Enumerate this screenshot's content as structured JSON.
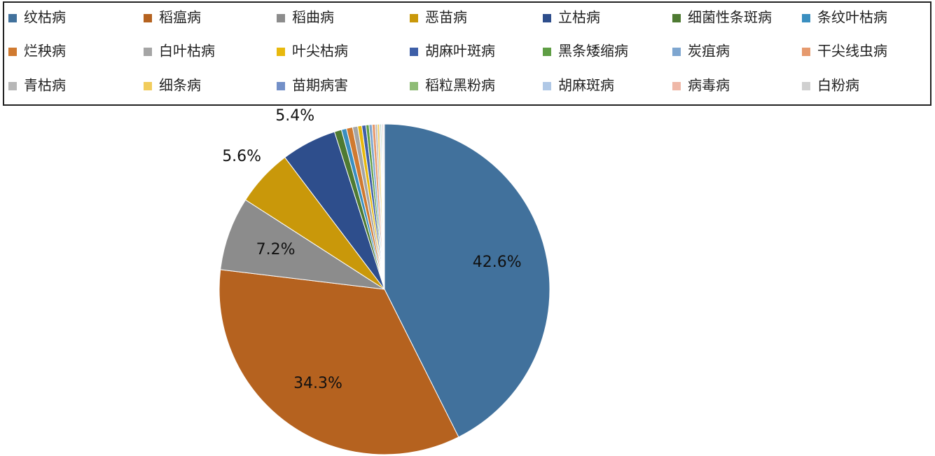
{
  "chart_data": {
    "type": "pie",
    "categories": [
      "纹枯病",
      "稻瘟病",
      "稻曲病",
      "恶苗病",
      "立枯病",
      "细菌性条斑病",
      "条纹叶枯病",
      "烂秧病",
      "白叶枯病",
      "叶尖枯病",
      "胡麻叶斑病",
      "黑条矮缩病",
      "炭疽病",
      "干尖线虫病",
      "青枯病",
      "细条病",
      "苗期病害",
      "稻粒黑粉病",
      "胡麻斑病",
      "病毒病",
      "白粉病"
    ],
    "values": [
      42.6,
      34.3,
      7.2,
      5.6,
      5.4,
      0.7,
      0.5,
      0.6,
      0.5,
      0.4,
      0.4,
      0.3,
      0.3,
      0.3,
      0.2,
      0.2,
      0.1,
      0.1,
      0.1,
      0.1,
      0.1
    ],
    "value_labels": [
      "42.6%",
      "34.3%",
      "7.2%",
      "5.6%",
      "5.4%",
      null,
      null,
      null,
      null,
      null,
      null,
      null,
      null,
      null,
      null,
      null,
      null,
      null,
      null,
      null,
      null
    ],
    "colors": [
      "#41719c",
      "#b5621f",
      "#8c8c8c",
      "#c9980a",
      "#2e4e8c",
      "#4e7a32",
      "#3a8fc0",
      "#d07a30",
      "#a5a5a5",
      "#e8b90e",
      "#3e5fa8",
      "#5f9e45",
      "#7ea6d0",
      "#e69a6e",
      "#b7b7b7",
      "#f1cc5c",
      "#7390c8",
      "#8fbc76",
      "#b0c8e6",
      "#efb8a8",
      "#d0d0d0"
    ],
    "legend": "top"
  }
}
